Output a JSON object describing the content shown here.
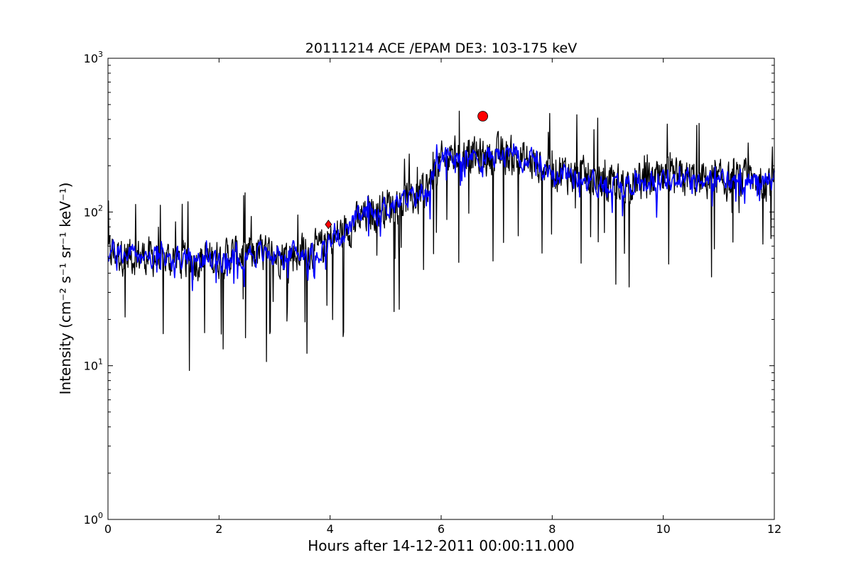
{
  "chart_data": {
    "type": "line",
    "title": "20111214 ACE /EPAM DE3: 103-175 keV",
    "xlabel": "Hours after 14-12-2011 00:00:11.000",
    "ylabel": "Intensity (cm⁻² s⁻¹ sr⁻¹ keV⁻¹)",
    "xlim": [
      0,
      12
    ],
    "ylim": [
      1,
      1000
    ],
    "yscale": "log",
    "grid": false,
    "x_ticks": [
      "0",
      "2",
      "4",
      "6",
      "8",
      "10",
      "12"
    ],
    "y_ticks": [
      {
        "base": "10",
        "exp": "0"
      },
      {
        "base": "10",
        "exp": "1"
      },
      {
        "base": "10",
        "exp": "2"
      },
      {
        "base": "10",
        "exp": "3"
      }
    ],
    "colors": {
      "raw": "#000000",
      "smoothed": "#0000ff",
      "marker": "#ff0000"
    },
    "series": [
      {
        "x": [
          0.0,
          0.5,
          1.0,
          1.5,
          2.0,
          2.5,
          3.0,
          3.5,
          3.8,
          4.0,
          4.3,
          4.6,
          5.0,
          5.3,
          5.6,
          5.8,
          6.0,
          6.3,
          6.6,
          6.75,
          7.0,
          7.3,
          7.6,
          8.0,
          8.5,
          9.0,
          9.5,
          10.0,
          10.5,
          11.0,
          11.5,
          12.0
        ],
        "values": [
          55,
          52,
          50,
          48,
          50,
          55,
          52,
          55,
          57,
          65,
          78,
          92,
          110,
          115,
          130,
          150,
          210,
          240,
          230,
          225,
          235,
          230,
          210,
          190,
          170,
          150,
          155,
          160,
          165,
          158,
          160,
          165
        ]
      },
      {
        "x": [
          0.0,
          0.5,
          1.0,
          1.5,
          2.0,
          2.5,
          3.0,
          3.5,
          3.8,
          4.0,
          4.3,
          4.6,
          5.0,
          5.3,
          5.6,
          5.8,
          6.0,
          6.3,
          6.6,
          6.75,
          7.0,
          7.3,
          7.6,
          8.0,
          8.5,
          9.0,
          9.5,
          10.0,
          10.5,
          11.0,
          11.5,
          12.0
        ],
        "values": [
          55,
          52,
          50,
          48,
          50,
          55,
          52,
          55,
          57,
          65,
          78,
          92,
          110,
          115,
          130,
          150,
          210,
          240,
          230,
          225,
          235,
          230,
          210,
          190,
          170,
          150,
          155,
          160,
          165,
          158,
          160,
          165
        ]
      }
    ],
    "markers": [
      {
        "x": 3.97,
        "y": 83,
        "shape": "diamond"
      },
      {
        "x": 6.75,
        "y": 420,
        "shape": "circle"
      }
    ]
  }
}
